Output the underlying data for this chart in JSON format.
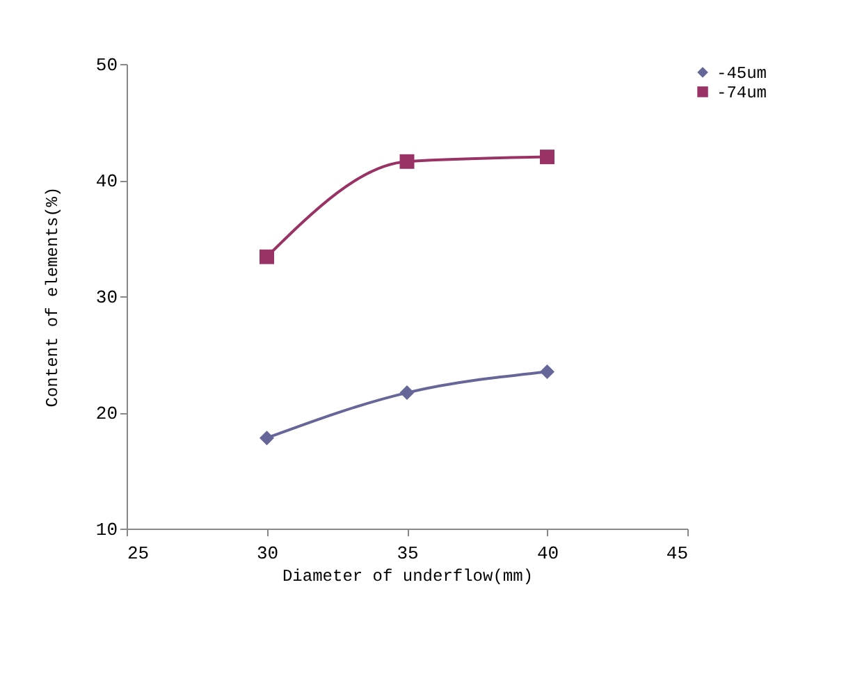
{
  "chart_data": {
    "type": "line",
    "xlabel": "Diameter of underflow(mm)",
    "ylabel": "Content of elements(%)",
    "x": [
      30,
      35,
      40
    ],
    "xlim": [
      25,
      45
    ],
    "xticks": [
      25,
      30,
      35,
      40,
      45
    ],
    "ylim": [
      10,
      50
    ],
    "yticks": [
      10,
      20,
      30,
      40,
      50
    ],
    "grid": false,
    "legend": "top right",
    "series": [
      {
        "name": "-45um",
        "color": "#666699",
        "marker": "diamond",
        "values": [
          17.8,
          21.7,
          23.5
        ]
      },
      {
        "name": "-74um",
        "color": "#993366",
        "marker": "square",
        "values": [
          33.4,
          41.6,
          42.0
        ]
      }
    ]
  }
}
